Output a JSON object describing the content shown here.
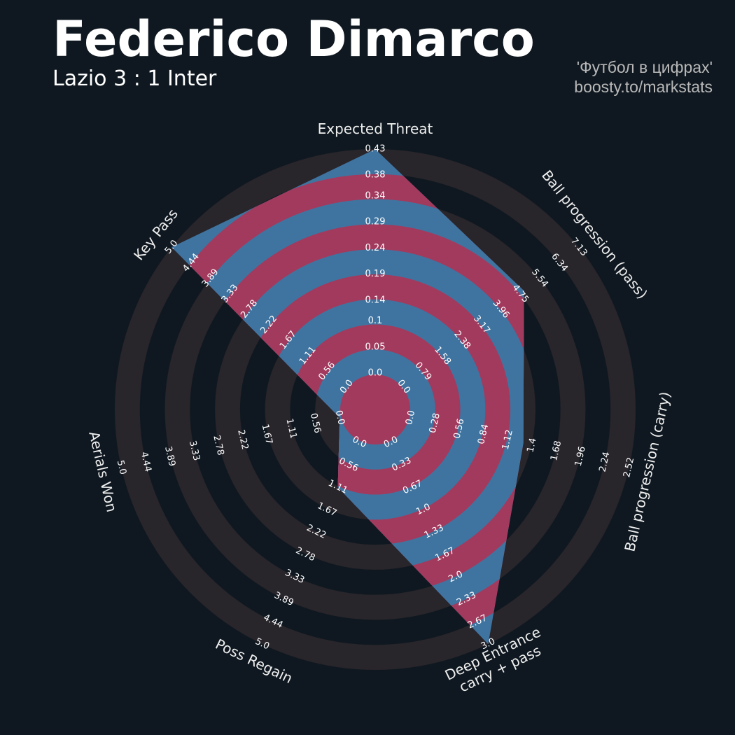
{
  "chart_data": {
    "type": "radar",
    "title": "Federico Dimarco",
    "subtitle": "Lazio 3 : 1 Inter",
    "annotations": [
      "'Футбол в цифрах'",
      "boosty.to/markstats"
    ],
    "colors": {
      "inside_a": "#3f74a0",
      "inside_b": "#a23a5e",
      "ring": "#28252b",
      "background": "#0f1820"
    },
    "params": [
      {
        "name": [
          "Expected Threat"
        ],
        "value": 0.43,
        "range": [
          0,
          0.43
        ],
        "ticks": [
          {
            "value": 0,
            "label": "0.0"
          },
          0.05,
          0.1,
          0.14,
          0.19,
          0.24,
          0.29,
          0.34,
          0.38,
          0.43
        ]
      },
      {
        "name": [
          "Ball progression (pass)"
        ],
        "value": 4.9,
        "range": [
          0,
          7.13
        ],
        "ticks": [
          {
            "value": 0,
            "label": "0.0"
          },
          0.79,
          1.58,
          2.38,
          3.17,
          3.96,
          4.75,
          5.54,
          6.34,
          7.13
        ]
      },
      {
        "name": [
          "Ball progression (carry)"
        ],
        "value": 1.3,
        "range": [
          0,
          2.52
        ],
        "ticks": [
          {
            "value": 0,
            "label": "0.0"
          },
          0.28,
          0.56,
          0.84,
          1.12,
          1.4,
          1.68,
          1.96,
          2.24,
          2.52
        ]
      },
      {
        "name": [
          "Deep Entrance",
          "carry + pass"
        ],
        "value": 3,
        "range": [
          0,
          3
        ],
        "ticks": [
          {
            "value": 0,
            "label": "0.0"
          },
          0.33,
          0.67,
          {
            "value": 1,
            "label": "1.0"
          },
          1.33,
          1.67,
          {
            "value": 2,
            "label": "2.0"
          },
          2.33,
          2.67,
          {
            "value": 3,
            "label": "3.0"
          }
        ]
      },
      {
        "name": [
          "Poss Regain"
        ],
        "value": 1.11,
        "range": [
          0,
          5
        ],
        "ticks": [
          {
            "value": 0,
            "label": "0.0"
          },
          0.56,
          1.11,
          1.67,
          2.22,
          2.78,
          3.33,
          3.89,
          4.44,
          {
            "value": 5,
            "label": "5.0"
          }
        ]
      },
      {
        "name": [
          "Aerials Won"
        ],
        "value": 0,
        "range": [
          0,
          5
        ],
        "ticks": [
          {
            "value": 0,
            "label": "0.0"
          },
          0.56,
          1.11,
          1.67,
          2.22,
          2.78,
          3.33,
          3.89,
          4.44,
          {
            "value": 5,
            "label": "5.0"
          }
        ]
      },
      {
        "name": [
          "Key Pass"
        ],
        "value": 5,
        "range": [
          0,
          5
        ],
        "ticks": [
          {
            "value": 0,
            "label": "0.0"
          },
          0.56,
          1.11,
          1.67,
          2.22,
          2.78,
          3.33,
          3.89,
          4.44,
          {
            "value": 5,
            "label": "5.0"
          }
        ]
      }
    ]
  }
}
